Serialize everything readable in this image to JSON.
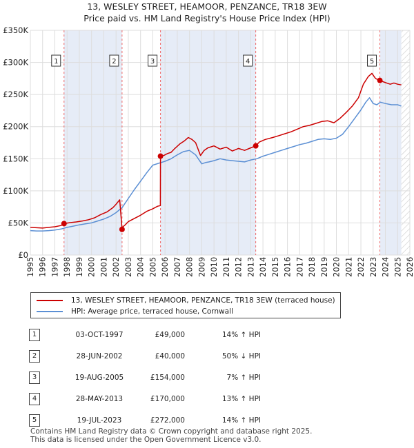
{
  "colors": {
    "property_line": "#cc0000",
    "hpi_line": "#5b8fd4",
    "band_fill": "#e6ecf7",
    "grid": "#dddddd",
    "marker_line": "#ee6666"
  },
  "chart_data": {
    "type": "line",
    "title": "13, WESLEY STREET, HEAMOOR, PENZANCE, TR18 3EW",
    "subtitle": "Price paid vs. HM Land Registry's House Price Index (HPI)",
    "xlabel": "",
    "ylabel": "",
    "xlim": [
      1995,
      2026
    ],
    "ylim": [
      0,
      350000
    ],
    "x_ticks": [
      "1995",
      "1996",
      "1997",
      "1998",
      "1999",
      "2000",
      "2001",
      "2002",
      "2003",
      "2004",
      "2005",
      "2006",
      "2007",
      "2008",
      "2009",
      "2010",
      "2011",
      "2012",
      "2013",
      "2014",
      "2015",
      "2016",
      "2017",
      "2018",
      "2019",
      "2020",
      "2021",
      "2022",
      "2023",
      "2024",
      "2025",
      "2026"
    ],
    "y_ticks": [
      0,
      50000,
      100000,
      150000,
      200000,
      250000,
      300000,
      350000
    ],
    "y_tick_labels": [
      "£0",
      "£50K",
      "£100K",
      "£150K",
      "£200K",
      "£250K",
      "£300K",
      "£350K"
    ],
    "grid": true,
    "shaded_bands": [
      [
        1997.75,
        2002.49
      ],
      [
        2005.63,
        2013.41
      ],
      [
        2023.55,
        2025.3
      ]
    ],
    "future_hatch_from": 2025.3,
    "series": [
      {
        "name": "13, WESLEY STREET, HEAMOOR, PENZANCE, TR18 3EW (terraced house)",
        "x": [
          1995.0,
          1995.5,
          1996.0,
          1996.5,
          1997.0,
          1997.5,
          1997.75,
          1998.25,
          1998.75,
          1999.25,
          1999.75,
          2000.25,
          2000.75,
          2001.25,
          2001.75,
          2002.0,
          2002.3,
          2002.49,
          2002.5,
          2002.75,
          2003.0,
          2003.5,
          2004.0,
          2004.5,
          2005.0,
          2005.4,
          2005.62,
          2005.63,
          2005.9,
          2006.2,
          2006.5,
          2006.8,
          2007.2,
          2007.6,
          2007.9,
          2008.2,
          2008.5,
          2008.9,
          2009.2,
          2009.5,
          2010.0,
          2010.5,
          2011.0,
          2011.5,
          2012.0,
          2012.5,
          2013.0,
          2013.41,
          2013.7,
          2014.2,
          2014.8,
          2015.3,
          2015.8,
          2016.3,
          2016.8,
          2017.3,
          2017.8,
          2018.3,
          2018.8,
          2019.3,
          2019.8,
          2020.3,
          2020.8,
          2021.3,
          2021.8,
          2022.2,
          2022.6,
          2022.9,
          2023.2,
          2023.55,
          2023.8,
          2024.1,
          2024.4,
          2024.7,
          2025.0,
          2025.3
        ],
        "values": [
          43000,
          42500,
          42000,
          43000,
          44000,
          46000,
          49000,
          50500,
          51500,
          53000,
          55000,
          58000,
          63000,
          67000,
          74000,
          79000,
          86000,
          40000,
          43000,
          47000,
          52000,
          57000,
          62000,
          68000,
          72000,
          76000,
          77000,
          154000,
          155000,
          158000,
          160000,
          166000,
          173000,
          178000,
          183000,
          180000,
          175000,
          155000,
          163000,
          167000,
          170000,
          165000,
          168000,
          162000,
          166000,
          163000,
          167000,
          170000,
          176000,
          180000,
          183000,
          186000,
          189000,
          192000,
          196000,
          200000,
          202000,
          205000,
          208000,
          209000,
          206000,
          213000,
          222000,
          232000,
          245000,
          266000,
          278000,
          283000,
          275000,
          272000,
          270000,
          268000,
          266000,
          268000,
          266000,
          265000
        ]
      },
      {
        "name": "HPI: Average price, terraced house, Cornwall",
        "x": [
          1995.0,
          1995.5,
          1996.0,
          1996.5,
          1997.0,
          1997.5,
          1998.0,
          1998.5,
          1999.0,
          1999.5,
          2000.0,
          2000.5,
          2001.0,
          2001.5,
          2002.0,
          2002.5,
          2003.0,
          2003.5,
          2004.0,
          2004.5,
          2005.0,
          2005.5,
          2006.0,
          2006.5,
          2007.0,
          2007.5,
          2008.0,
          2008.5,
          2009.0,
          2009.3,
          2009.6,
          2010.0,
          2010.5,
          2011.0,
          2011.5,
          2012.0,
          2012.5,
          2013.0,
          2013.5,
          2014.0,
          2014.5,
          2015.0,
          2015.5,
          2016.0,
          2016.5,
          2017.0,
          2017.5,
          2018.0,
          2018.5,
          2019.0,
          2019.5,
          2020.0,
          2020.5,
          2021.0,
          2021.5,
          2022.0,
          2022.4,
          2022.7,
          2023.0,
          2023.3,
          2023.6,
          2024.0,
          2024.5,
          2025.0,
          2025.3
        ],
        "values": [
          38000,
          37500,
          37500,
          38000,
          39000,
          40500,
          43000,
          45000,
          47000,
          48500,
          50000,
          53000,
          56000,
          60000,
          66000,
          74000,
          88000,
          102000,
          115000,
          128000,
          140000,
          143000,
          146000,
          150000,
          156000,
          161000,
          163000,
          156000,
          142000,
          144000,
          145000,
          147000,
          150000,
          148000,
          147000,
          146000,
          145000,
          148000,
          150000,
          154000,
          157000,
          160000,
          163000,
          166000,
          169000,
          172000,
          174000,
          177000,
          180000,
          181000,
          180000,
          182000,
          188000,
          200000,
          213000,
          226000,
          238000,
          245000,
          236000,
          234000,
          238000,
          236000,
          234000,
          234000,
          232000
        ]
      }
    ],
    "annotations": [
      {
        "label": "1",
        "x": 1997.75,
        "value": 49000
      },
      {
        "label": "2",
        "x": 2002.49,
        "value": 40000
      },
      {
        "label": "3",
        "x": 2005.63,
        "value": 154000
      },
      {
        "label": "4",
        "x": 2013.41,
        "value": 170000
      },
      {
        "label": "5",
        "x": 2023.55,
        "value": 272000
      }
    ]
  },
  "legend": {
    "property": "13, WESLEY STREET, HEAMOOR, PENZANCE, TR18 3EW (terraced house)",
    "hpi": "HPI: Average price, terraced house, Cornwall"
  },
  "sales": [
    {
      "num": "1",
      "date": "03-OCT-1997",
      "price": "£49,000",
      "hpi": "14% ↑ HPI"
    },
    {
      "num": "2",
      "date": "28-JUN-2002",
      "price": "£40,000",
      "hpi": "50% ↓ HPI"
    },
    {
      "num": "3",
      "date": "19-AUG-2005",
      "price": "£154,000",
      "hpi": "7% ↑ HPI"
    },
    {
      "num": "4",
      "date": "28-MAY-2013",
      "price": "£170,000",
      "hpi": "13% ↑ HPI"
    },
    {
      "num": "5",
      "date": "19-JUL-2023",
      "price": "£272,000",
      "hpi": "14% ↑ HPI"
    }
  ],
  "footer": {
    "line1": "Contains HM Land Registry data © Crown copyright and database right 2025.",
    "line2": "This data is licensed under the Open Government Licence v3.0."
  }
}
